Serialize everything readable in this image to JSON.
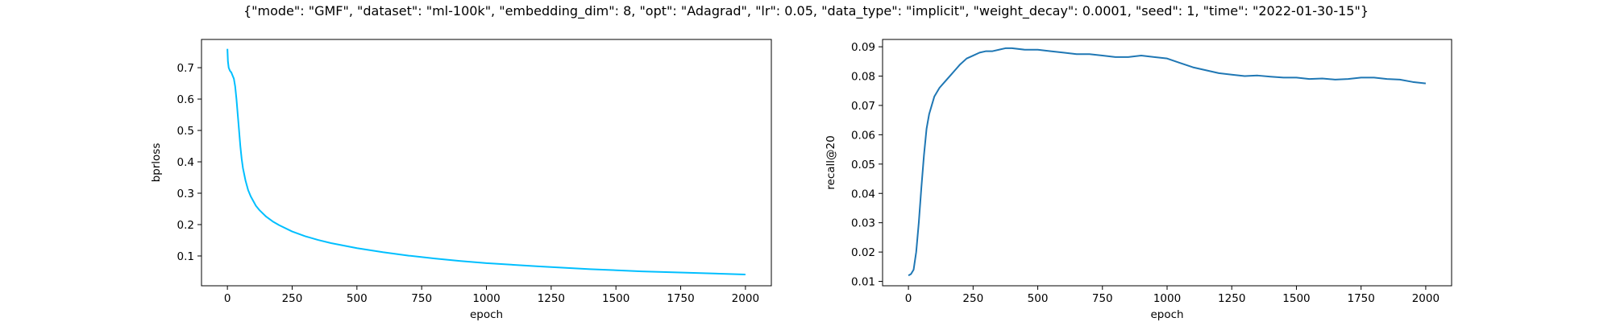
{
  "figure_title": "{\"mode\": \"GMF\", \"dataset\": \"ml-100k\", \"embedding_dim\": 8, \"opt\": \"Adagrad\", \"lr\": 0.05, \"data_type\": \"implicit\", \"weight_decay\": 0.0001, \"seed\": 1, \"time\": \"2022-01-30-15\"}",
  "chart_data": [
    {
      "type": "line",
      "xlabel": "epoch",
      "ylabel": "bprloss",
      "xlim": [
        -100,
        2100
      ],
      "ylim": [
        0.005,
        0.79
      ],
      "xticks": [
        0,
        250,
        500,
        750,
        1000,
        1250,
        1500,
        1750,
        2000
      ],
      "yticks": [
        0.1,
        0.2,
        0.3,
        0.4,
        0.5,
        0.6,
        0.7
      ],
      "ytick_labels": [
        "0.1",
        "0.2",
        "0.3",
        "0.4",
        "0.5",
        "0.6",
        "0.7"
      ],
      "grid": false,
      "color": "#00bfff",
      "series": [
        {
          "x": [
            0,
            2,
            5,
            10,
            15,
            20,
            25,
            30,
            35,
            40,
            45,
            50,
            55,
            60,
            65,
            70,
            75,
            80,
            90,
            100,
            110,
            125,
            150,
            175,
            200,
            250,
            300,
            350,
            400,
            500,
            600,
            700,
            800,
            900,
            1000,
            1200,
            1400,
            1600,
            1800,
            2000
          ],
          "y": [
            0.76,
            0.72,
            0.7,
            0.69,
            0.685,
            0.675,
            0.665,
            0.64,
            0.6,
            0.55,
            0.5,
            0.45,
            0.41,
            0.38,
            0.36,
            0.34,
            0.325,
            0.31,
            0.29,
            0.275,
            0.26,
            0.245,
            0.225,
            0.21,
            0.198,
            0.178,
            0.163,
            0.151,
            0.141,
            0.125,
            0.112,
            0.101,
            0.092,
            0.084,
            0.077,
            0.067,
            0.058,
            0.051,
            0.046,
            0.041
          ]
        }
      ]
    },
    {
      "type": "line",
      "xlabel": "epoch",
      "ylabel": "recall@20",
      "xlim": [
        -100,
        2100
      ],
      "ylim": [
        0.0085,
        0.0925
      ],
      "xticks": [
        0,
        250,
        500,
        750,
        1000,
        1250,
        1500,
        1750,
        2000
      ],
      "yticks": [
        0.01,
        0.02,
        0.03,
        0.04,
        0.05,
        0.06,
        0.07,
        0.08,
        0.09
      ],
      "ytick_labels": [
        "0.01",
        "0.02",
        "0.03",
        "0.04",
        "0.05",
        "0.06",
        "0.07",
        "0.08",
        "0.09"
      ],
      "grid": false,
      "color": "#1f77b4",
      "series": [
        {
          "x": [
            0,
            10,
            20,
            30,
            40,
            50,
            60,
            70,
            80,
            90,
            100,
            120,
            140,
            160,
            180,
            200,
            225,
            250,
            275,
            300,
            325,
            350,
            375,
            400,
            450,
            500,
            550,
            600,
            650,
            700,
            750,
            800,
            850,
            900,
            950,
            1000,
            1050,
            1100,
            1150,
            1200,
            1250,
            1300,
            1350,
            1400,
            1450,
            1500,
            1550,
            1600,
            1650,
            1700,
            1750,
            1800,
            1850,
            1900,
            1950,
            2000
          ],
          "y": [
            0.012,
            0.0125,
            0.014,
            0.02,
            0.03,
            0.042,
            0.053,
            0.062,
            0.067,
            0.07,
            0.073,
            0.076,
            0.078,
            0.08,
            0.082,
            0.084,
            0.086,
            0.087,
            0.088,
            0.0885,
            0.0885,
            0.089,
            0.0895,
            0.0895,
            0.089,
            0.089,
            0.0885,
            0.088,
            0.0875,
            0.0875,
            0.087,
            0.0865,
            0.0865,
            0.087,
            0.0865,
            0.086,
            0.0845,
            0.083,
            0.082,
            0.081,
            0.0805,
            0.08,
            0.0802,
            0.0798,
            0.0795,
            0.0795,
            0.079,
            0.0792,
            0.0788,
            0.079,
            0.0795,
            0.0795,
            0.079,
            0.0788,
            0.078,
            0.0775
          ]
        }
      ]
    }
  ]
}
